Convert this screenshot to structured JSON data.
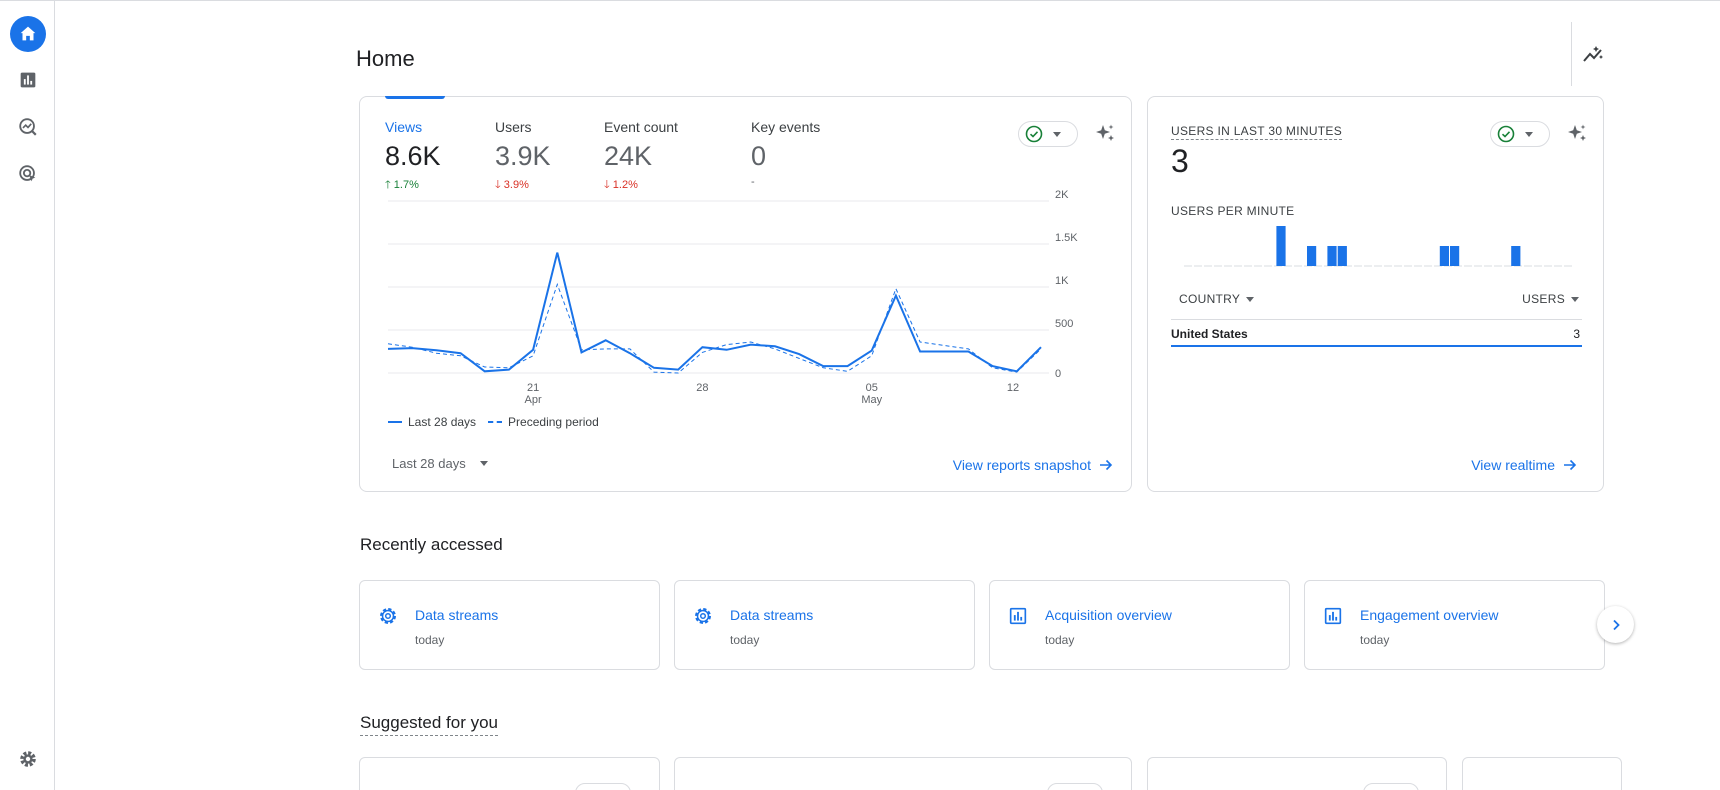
{
  "page": {
    "title": "Home"
  },
  "nav": {
    "items": [
      {
        "name": "home",
        "icon": "home-icon",
        "active": true
      },
      {
        "name": "reports",
        "icon": "bar-chart-icon"
      },
      {
        "name": "explore",
        "icon": "explore-icon"
      },
      {
        "name": "advertising",
        "icon": "advertising-icon"
      }
    ],
    "settings_icon": "gear-icon"
  },
  "overview": {
    "metrics": [
      {
        "label": "Views",
        "value": "8.6K",
        "delta": "1.7%",
        "direction": "up"
      },
      {
        "label": "Users",
        "value": "3.9K",
        "delta": "3.9%",
        "direction": "down"
      },
      {
        "label": "Event count",
        "value": "24K",
        "delta": "1.2%",
        "direction": "down"
      },
      {
        "label": "Key events",
        "value": "0",
        "delta": "-",
        "direction": "none"
      }
    ],
    "date_range": "Last 28 days",
    "link": "View reports snapshot"
  },
  "chart_data": {
    "type": "line",
    "x_tick_labels": [
      {
        "day": "21",
        "month": "Apr"
      },
      {
        "day": "28",
        "month": ""
      },
      {
        "day": "05",
        "month": "May"
      },
      {
        "day": "12",
        "month": ""
      }
    ],
    "y_tick_labels": [
      "2K",
      "1.5K",
      "1K",
      "500",
      "0"
    ],
    "ylim": [
      0,
      2000
    ],
    "legend": "bottom-left",
    "grid": true,
    "series": [
      {
        "name": "Last 28 days",
        "style": "solid",
        "values": [
          280,
          290,
          265,
          230,
          20,
          40,
          270,
          1400,
          240,
          380,
          230,
          60,
          40,
          300,
          270,
          330,
          310,
          220,
          80,
          80,
          260,
          900,
          250,
          250,
          250,
          80,
          20,
          300
        ]
      },
      {
        "name": "Preceding period",
        "style": "dashed",
        "values": [
          340,
          300,
          230,
          200,
          70,
          60,
          200,
          1030,
          270,
          280,
          280,
          10,
          0,
          240,
          330,
          360,
          280,
          170,
          60,
          20,
          200,
          980,
          360,
          320,
          280,
          60,
          10,
          280
        ]
      }
    ]
  },
  "realtime": {
    "title": "USERS IN LAST 30 MINUTES",
    "value": "3",
    "per_minute_label": "USERS PER MINUTE",
    "per_minute": [
      0,
      0,
      0,
      0,
      0,
      0,
      0,
      0,
      0,
      2,
      0,
      0,
      1,
      0,
      1,
      1,
      0,
      0,
      0,
      0,
      0,
      0,
      0,
      0,
      0,
      1,
      1,
      0,
      0,
      0,
      0,
      0,
      1,
      0,
      0,
      0,
      0,
      0
    ],
    "col_country": "COUNTRY",
    "col_users": "USERS",
    "rows": [
      {
        "country": "United States",
        "users": "3"
      }
    ],
    "link": "View realtime"
  },
  "recent": {
    "title": "Recently accessed",
    "items": [
      {
        "name": "Data streams",
        "when": "today",
        "icon": "gear-icon"
      },
      {
        "name": "Data streams",
        "when": "today",
        "icon": "gear-icon"
      },
      {
        "name": "Acquisition overview",
        "when": "today",
        "icon": "report-icon"
      },
      {
        "name": "Engagement overview",
        "when": "today",
        "icon": "report-icon"
      }
    ]
  },
  "suggested": {
    "title": "Suggested for you"
  },
  "colors": {
    "accent": "#1a73e8",
    "up": "#188038",
    "down": "#d93025",
    "border": "#dadce0"
  }
}
